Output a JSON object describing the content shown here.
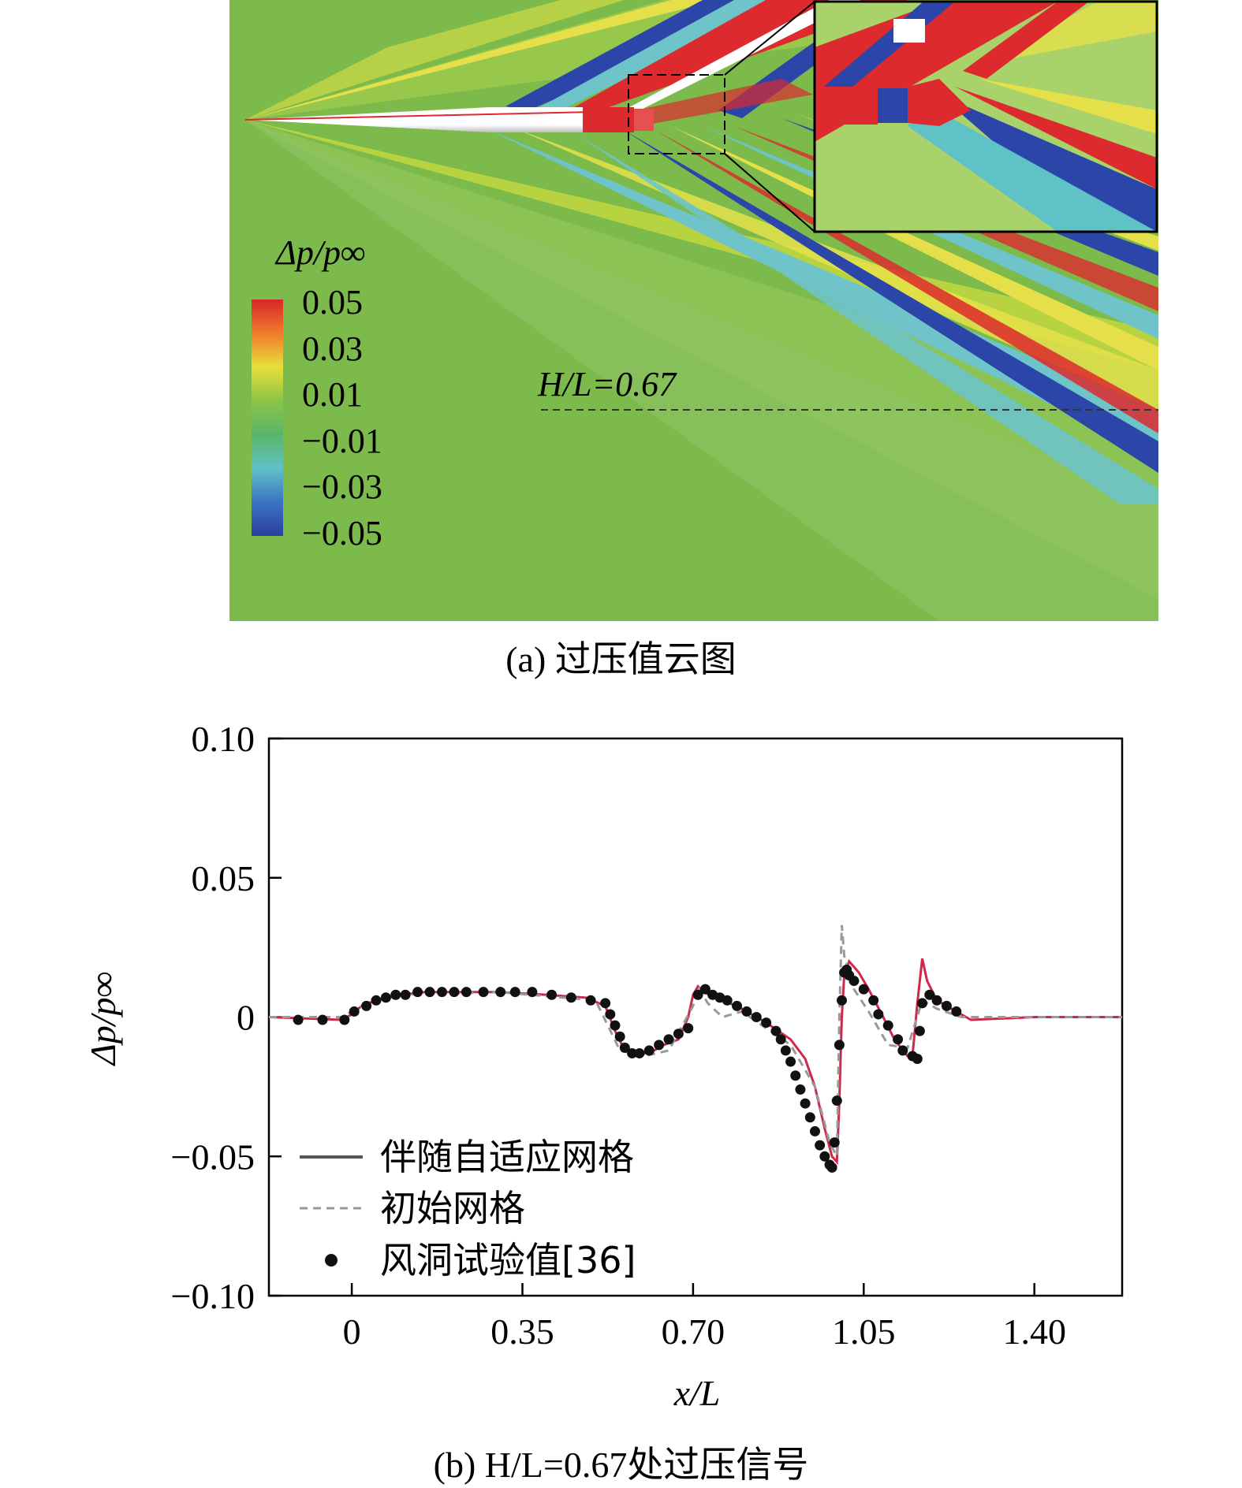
{
  "panel_a": {
    "caption": "(a) 过压值云图",
    "colorbar": {
      "title": "Δp/p∞",
      "tick_labels": [
        "0.05",
        "0.03",
        "0.01",
        "−0.01",
        "−0.03",
        "−0.05"
      ],
      "colors": [
        "#d8262a",
        "#f07a2a",
        "#e8df3a",
        "#8cc447",
        "#5ab56a",
        "#5fc2c6",
        "#3a74c3",
        "#2b3f9e"
      ]
    },
    "line_label": "H/L=0.67",
    "colors": {
      "background": "#7cba4c",
      "red": "#dd2a2e",
      "blue": "#2b45a8",
      "cyan": "#6ec4c8",
      "yellow": "#e5e04a",
      "body": "#ffffff"
    }
  },
  "panel_b": {
    "caption": "(b) H/L=0.67处过压信号",
    "legend": [
      "伴随自适应网格",
      "初始网格",
      "风洞试验值[36]"
    ],
    "chart_data": {
      "type": "line",
      "xlabel": "x/L",
      "ylabel": "Δp/p∞",
      "xlim": [
        -0.17,
        1.58
      ],
      "ylim": [
        -0.1,
        0.1
      ],
      "xticks": [
        "0",
        "0.35",
        "0.70",
        "1.05",
        "1.40"
      ],
      "xtick_values": [
        0,
        0.35,
        0.7,
        1.05,
        1.4
      ],
      "yticks": [
        "0.10",
        "0.05",
        "0",
        "−0.05",
        "−0.10"
      ],
      "ytick_values": [
        0.1,
        0.05,
        0,
        -0.05,
        -0.1
      ],
      "series": [
        {
          "name": "伴随自适应网格",
          "style": "solid",
          "color": "#cc2a4a",
          "x": [
            -0.17,
            -0.02,
            0.0,
            0.02,
            0.05,
            0.1,
            0.15,
            0.2,
            0.3,
            0.4,
            0.48,
            0.52,
            0.54,
            0.56,
            0.58,
            0.6,
            0.62,
            0.64,
            0.67,
            0.69,
            0.7,
            0.71,
            0.72,
            0.75,
            0.8,
            0.85,
            0.9,
            0.93,
            0.95,
            0.97,
            0.985,
            0.995,
            1.0,
            1.005,
            1.01,
            1.02,
            1.04,
            1.06,
            1.09,
            1.11,
            1.13,
            1.14,
            1.15,
            1.16,
            1.17,
            1.18,
            1.2,
            1.23,
            1.27,
            1.4,
            1.58
          ],
          "y": [
            0,
            -0.001,
            0.001,
            0.004,
            0.006,
            0.008,
            0.009,
            0.009,
            0.009,
            0.008,
            0.007,
            0.004,
            -0.005,
            -0.012,
            -0.014,
            -0.013,
            -0.012,
            -0.01,
            -0.008,
            0.0,
            0.008,
            0.011,
            0.009,
            0.007,
            0.003,
            -0.002,
            -0.008,
            -0.015,
            -0.025,
            -0.04,
            -0.05,
            -0.052,
            -0.03,
            0.0,
            0.015,
            0.02,
            0.016,
            0.01,
            0.0,
            -0.007,
            -0.012,
            -0.014,
            -0.014,
            0.005,
            0.021,
            0.013,
            0.006,
            0.003,
            -0.001,
            0,
            0
          ]
        },
        {
          "name": "初始网格",
          "style": "dashed",
          "color": "#999999",
          "x": [
            -0.17,
            -0.02,
            0.02,
            0.1,
            0.3,
            0.5,
            0.55,
            0.6,
            0.65,
            0.7,
            0.71,
            0.73,
            0.76,
            0.8,
            0.9,
            0.95,
            0.98,
            0.995,
            1.0,
            1.005,
            1.01,
            1.03,
            1.06,
            1.1,
            1.14,
            1.17,
            1.2,
            1.25,
            1.58
          ],
          "y": [
            0,
            0,
            0.004,
            0.008,
            0.009,
            0.006,
            -0.012,
            -0.014,
            -0.012,
            0.004,
            0.011,
            0.005,
            0.0,
            0.002,
            -0.01,
            -0.025,
            -0.045,
            -0.05,
            0.0,
            0.033,
            0.022,
            0.01,
            0.002,
            -0.01,
            -0.011,
            0.006,
            0.003,
            0.0,
            0
          ]
        }
      ],
      "markers": {
        "name": "风洞试验值[36]",
        "x": [
          -0.11,
          -0.06,
          -0.015,
          0.005,
          0.03,
          0.05,
          0.07,
          0.09,
          0.11,
          0.135,
          0.16,
          0.185,
          0.21,
          0.235,
          0.27,
          0.305,
          0.335,
          0.37,
          0.41,
          0.45,
          0.49,
          0.52,
          0.53,
          0.54,
          0.55,
          0.56,
          0.575,
          0.59,
          0.61,
          0.63,
          0.65,
          0.67,
          0.69,
          0.71,
          0.725,
          0.74,
          0.755,
          0.77,
          0.79,
          0.81,
          0.83,
          0.85,
          0.87,
          0.88,
          0.89,
          0.9,
          0.91,
          0.92,
          0.93,
          0.94,
          0.95,
          0.96,
          0.97,
          0.98,
          0.985,
          0.99,
          0.995,
          1.0,
          1.005,
          1.01,
          1.015,
          1.02,
          1.03,
          1.05,
          1.07,
          1.08,
          1.1,
          1.12,
          1.13,
          1.15,
          1.16,
          1.165,
          1.17,
          1.185,
          1.2,
          1.22,
          1.24
        ],
        "y": [
          -0.001,
          -0.001,
          -0.001,
          0.002,
          0.004,
          0.006,
          0.007,
          0.008,
          0.008,
          0.009,
          0.009,
          0.009,
          0.009,
          0.009,
          0.009,
          0.009,
          0.009,
          0.009,
          0.008,
          0.007,
          0.006,
          0.005,
          0.001,
          -0.003,
          -0.007,
          -0.011,
          -0.013,
          -0.013,
          -0.012,
          -0.01,
          -0.008,
          -0.006,
          -0.004,
          0.008,
          0.01,
          0.008,
          0.007,
          0.006,
          0.004,
          0.002,
          0.0,
          -0.002,
          -0.005,
          -0.008,
          -0.012,
          -0.016,
          -0.021,
          -0.026,
          -0.031,
          -0.036,
          -0.041,
          -0.046,
          -0.05,
          -0.053,
          -0.054,
          -0.045,
          -0.03,
          -0.01,
          0.006,
          0.016,
          0.017,
          0.015,
          0.013,
          0.01,
          0.006,
          0.001,
          -0.003,
          -0.008,
          -0.012,
          -0.014,
          -0.015,
          -0.005,
          0.005,
          0.008,
          0.006,
          0.004,
          0.002
        ]
      },
      "grid": false,
      "legend_position": "bottom-left"
    }
  }
}
